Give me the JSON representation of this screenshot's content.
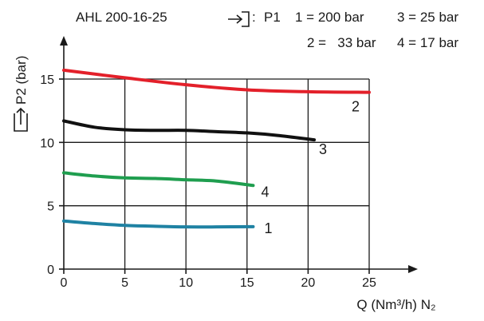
{
  "title": "AHL 200-16-25",
  "legend": {
    "p1_label": "P1",
    "entries": [
      {
        "key": "1",
        "text": "1 = 200 bar"
      },
      {
        "key": "3",
        "text": "3 = 25 bar"
      },
      {
        "key": "2",
        "text": "2 =   33 bar"
      },
      {
        "key": "4",
        "text": "4 = 17 bar"
      }
    ]
  },
  "icons": {
    "inlet": "inlet-arrow-icon",
    "outlet": "outlet-arrow-icon"
  },
  "chart_data": {
    "type": "line",
    "title": "AHL 200-16-25",
    "xlabel": "Q (Nm³/h) N₂",
    "ylabel": "P2 (bar)",
    "xlim": [
      0,
      25
    ],
    "ylim": [
      0,
      15
    ],
    "x_ticks": [
      0,
      5,
      10,
      15,
      20,
      25
    ],
    "y_ticks": [
      0,
      5,
      10,
      15
    ],
    "grid": true,
    "series": [
      {
        "name": "1",
        "color": "#1f82a3",
        "x": [
          0,
          2.5,
          5,
          7.5,
          10,
          12.5,
          15.5
        ],
        "y": [
          3.8,
          3.6,
          3.45,
          3.38,
          3.33,
          3.33,
          3.35
        ]
      },
      {
        "name": "2",
        "color": "#e3202a",
        "x": [
          0,
          5,
          10,
          15,
          20,
          25
        ],
        "y": [
          15.7,
          15.1,
          14.55,
          14.15,
          14.0,
          13.95
        ]
      },
      {
        "name": "3",
        "color": "#111111",
        "x": [
          0,
          2.5,
          5,
          7.5,
          10,
          12.5,
          15,
          17.5,
          20.5
        ],
        "y": [
          11.7,
          11.2,
          11.0,
          10.95,
          10.95,
          10.85,
          10.75,
          10.55,
          10.2
        ]
      },
      {
        "name": "4",
        "color": "#1f9e4f",
        "x": [
          0,
          2.5,
          5,
          7.5,
          10,
          12.5,
          15.5
        ],
        "y": [
          7.6,
          7.35,
          7.2,
          7.15,
          7.05,
          6.95,
          6.6
        ]
      }
    ]
  }
}
